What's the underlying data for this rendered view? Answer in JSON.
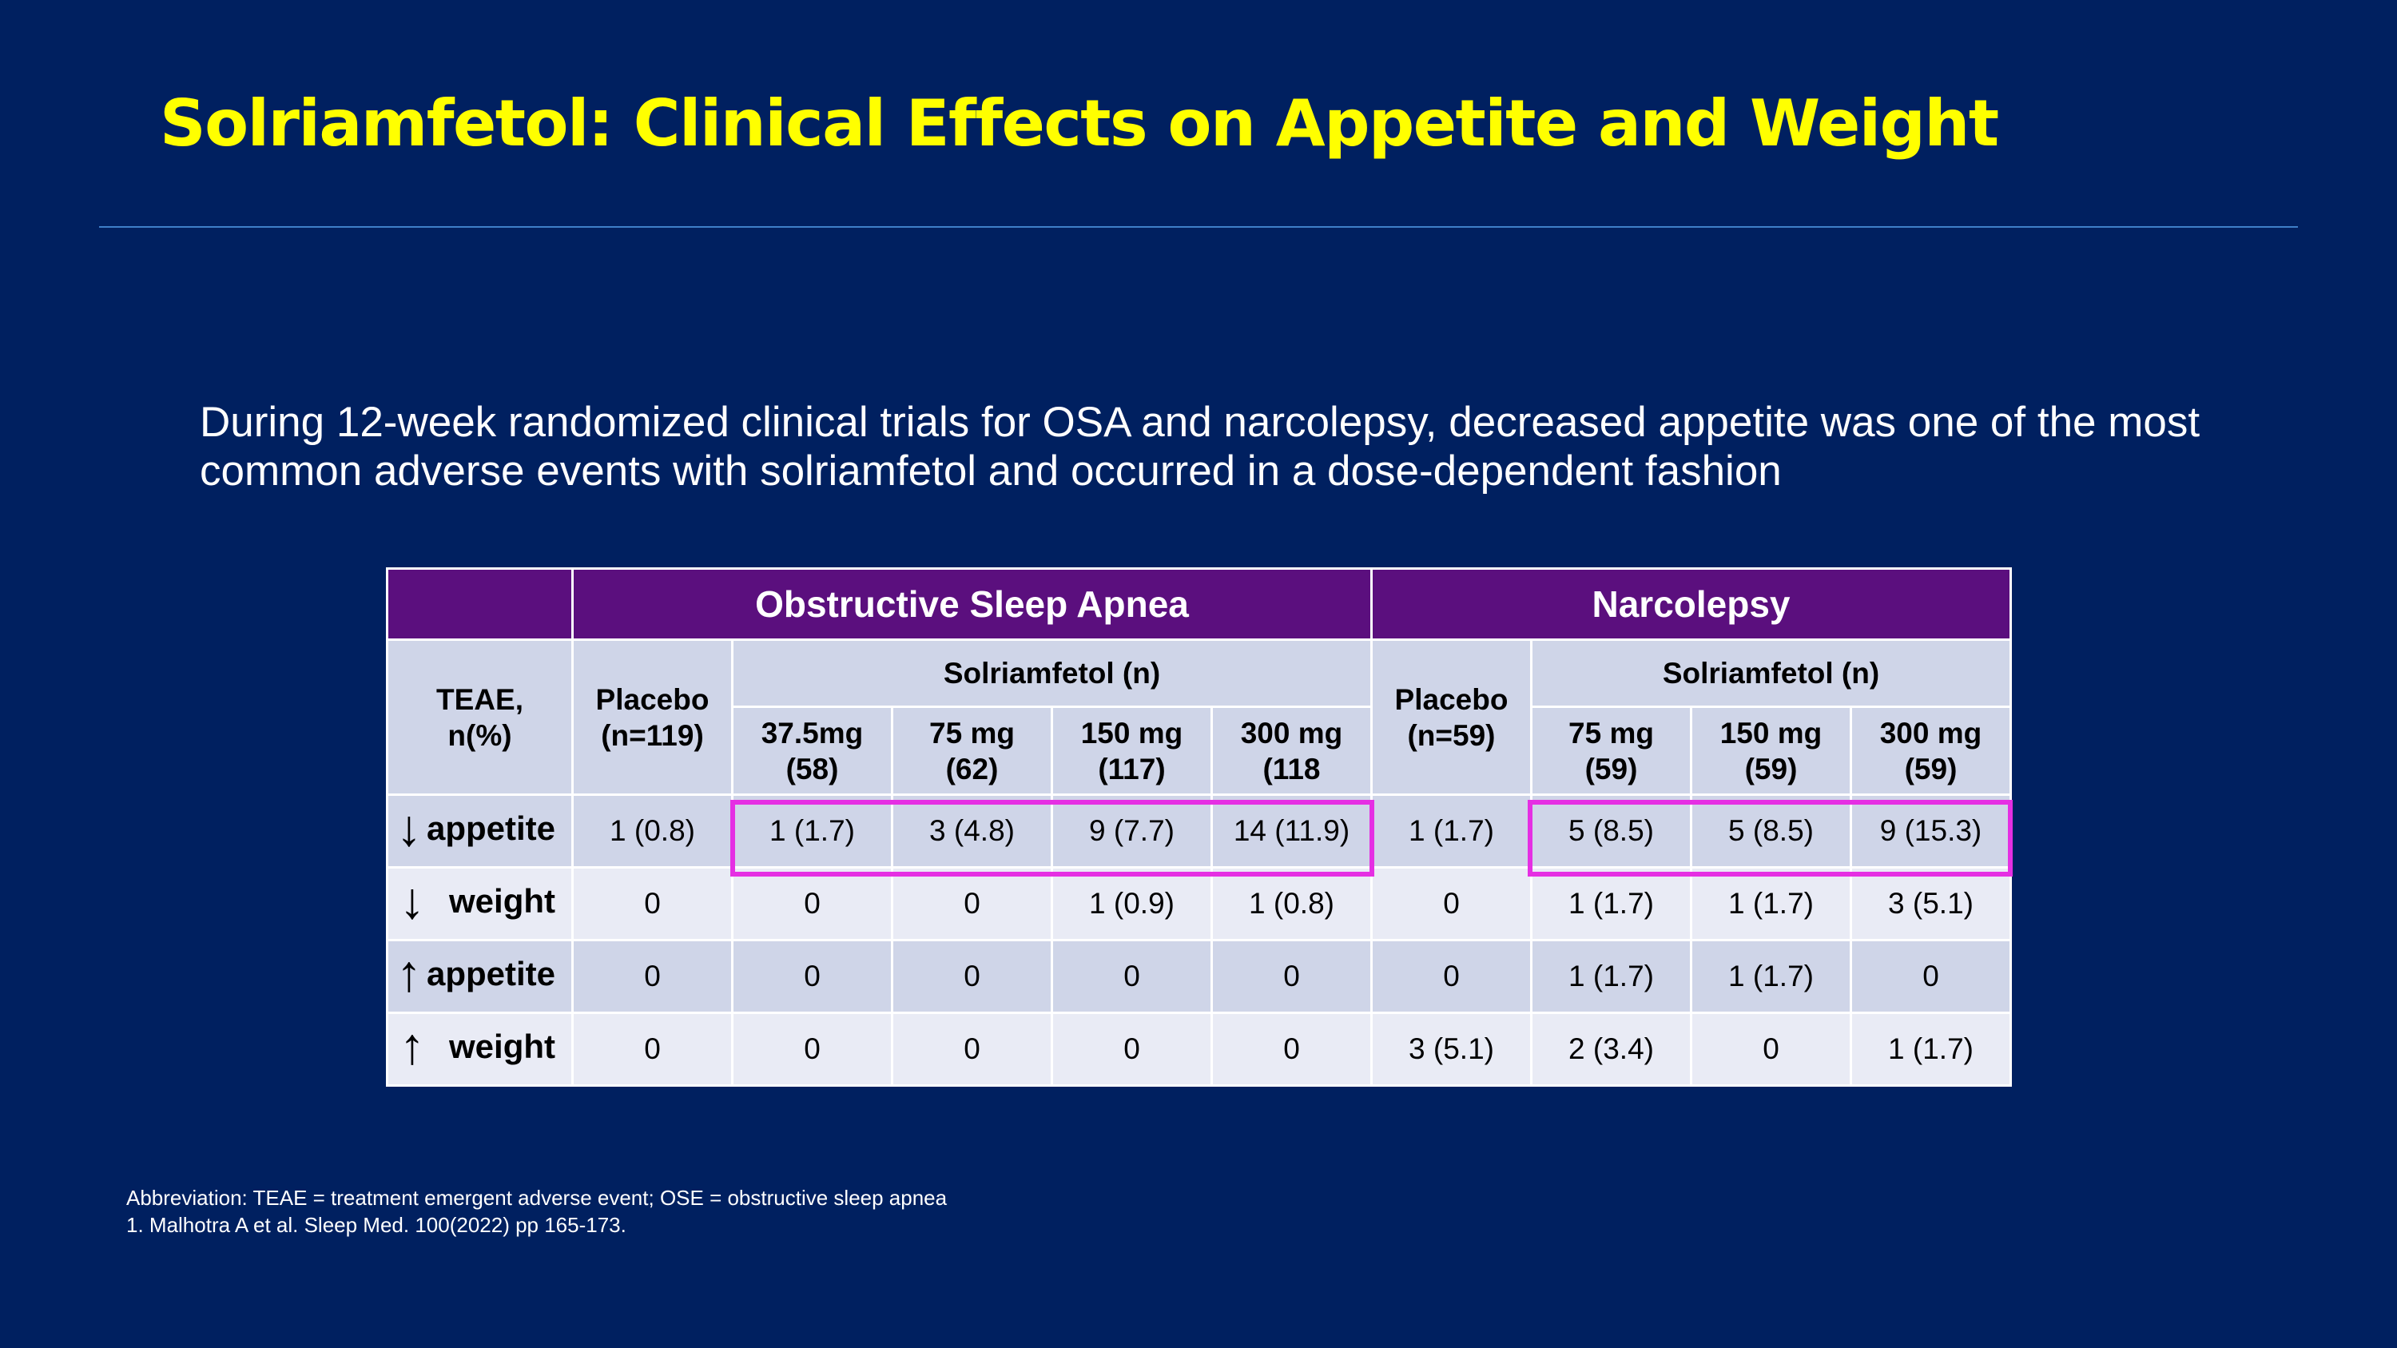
{
  "title": "Solriamfetol: Clinical Effects on Appetite and Weight",
  "intro": "During 12-week randomized clinical trials for OSA and narcolepsy, decreased appetite was one of the most common adverse events with solriamfetol and occurred in a dose-dependent fashion",
  "table": {
    "group_headers": {
      "osa": "Obstructive Sleep Apnea",
      "narcolepsy": "Narcolepsy"
    },
    "teae_label_1": "TEAE,",
    "teae_label_2": "n(%)",
    "osa_placebo_1": "Placebo",
    "osa_placebo_2": "(n=119)",
    "osa_solri": "Solriamfetol (n)",
    "osa_doses": [
      {
        "dose": "37.5mg",
        "n": "(58)"
      },
      {
        "dose": "75 mg",
        "n": "(62)"
      },
      {
        "dose": "150 mg",
        "n": "(117)"
      },
      {
        "dose": "300 mg",
        "n": "(118"
      }
    ],
    "nar_placebo_1": "Placebo",
    "nar_placebo_2": "(n=59)",
    "nar_solri": "Solriamfetol (n)",
    "nar_doses": [
      {
        "dose": "75 mg",
        "n": "(59)"
      },
      {
        "dose": "150 mg",
        "n": "(59)"
      },
      {
        "dose": "300 mg",
        "n": "(59)"
      }
    ],
    "rows": [
      {
        "arrow": "↓",
        "label": "appetite",
        "cells": [
          "1 (0.8)",
          "1 (1.7)",
          "3 (4.8)",
          "9 (7.7)",
          "14 (11.9)",
          "1 (1.7)",
          "5 (8.5)",
          "5 (8.5)",
          "9 (15.3)"
        ]
      },
      {
        "arrow": "↓",
        "label": "weight",
        "cells": [
          "0",
          "0",
          "0",
          "1 (0.9)",
          "1 (0.8)",
          "0",
          "1 (1.7)",
          "1 (1.7)",
          "3 (5.1)"
        ]
      },
      {
        "arrow": "↑",
        "label": "appetite",
        "cells": [
          "0",
          "0",
          "0",
          "0",
          "0",
          "0",
          "1 (1.7)",
          "1 (1.7)",
          "0"
        ]
      },
      {
        "arrow": "↑",
        "label": "weight",
        "cells": [
          "0",
          "0",
          "0",
          "0",
          "0",
          "3 (5.1)",
          "2 (3.4)",
          "0",
          "1 (1.7)"
        ]
      }
    ]
  },
  "footnotes": [
    "Abbreviation: TEAE = treatment emergent adverse event; OSE = obstructive sleep apnea",
    "1. Malhotra A et al. Sleep Med. 100(2022) pp 165-173."
  ],
  "colors": {
    "background": "#002060",
    "title": "#FFFF00",
    "header": "#5b0f7e",
    "highlight": "#e52fe3"
  }
}
